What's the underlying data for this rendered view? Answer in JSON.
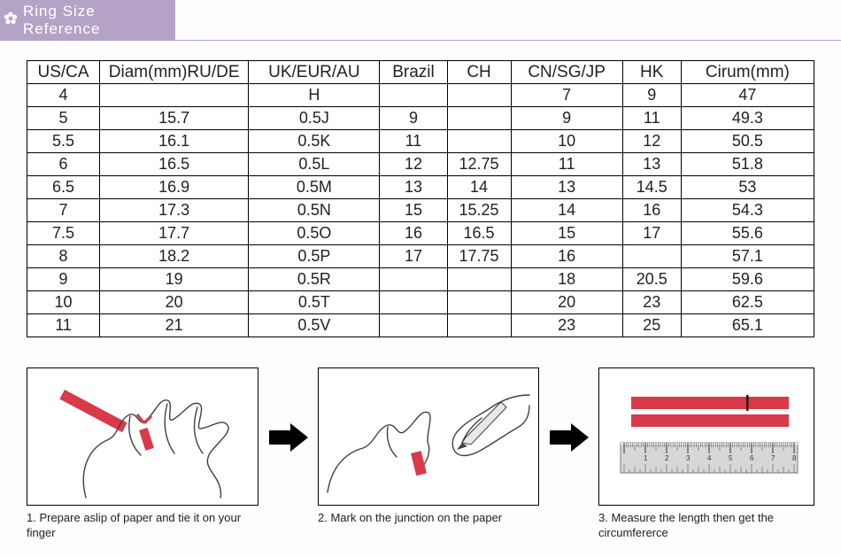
{
  "title": "Ring Size Reference",
  "table": {
    "headers": [
      "US/CA",
      "Diam(mm)RU/DE",
      "UK/EUR/AU",
      "Brazil",
      "CH",
      "CN/SG/JP",
      "HK",
      "Cirum(mm)"
    ],
    "rows": [
      [
        "4",
        "",
        "H",
        "",
        "",
        "7",
        "9",
        "47"
      ],
      [
        "5",
        "15.7",
        "0.5J",
        "9",
        "",
        "9",
        "11",
        "49.3"
      ],
      [
        "5.5",
        "16.1",
        "0.5K",
        "11",
        "",
        "10",
        "12",
        "50.5"
      ],
      [
        "6",
        "16.5",
        "0.5L",
        "12",
        "12.75",
        "11",
        "13",
        "51.8"
      ],
      [
        "6.5",
        "16.9",
        "0.5M",
        "13",
        "14",
        "13",
        "14.5",
        "53"
      ],
      [
        "7",
        "17.3",
        "0.5N",
        "15",
        "15.25",
        "14",
        "16",
        "54.3"
      ],
      [
        "7.5",
        "17.7",
        "0.5O",
        "16",
        "16.5",
        "15",
        "17",
        "55.6"
      ],
      [
        "8",
        "18.2",
        "0.5P",
        "17",
        "17.75",
        "16",
        "",
        "57.1"
      ],
      [
        "9",
        "19",
        "0.5R",
        "",
        "",
        "18",
        "20.5",
        "59.6"
      ],
      [
        "10",
        "20",
        "0.5T",
        "",
        "",
        "20",
        "23",
        "62.5"
      ],
      [
        "11",
        "21",
        "0.5V",
        "",
        "",
        "23",
        "25",
        "65.1"
      ]
    ]
  },
  "steps": {
    "s1": "1. Prepare aslip of paper and tie it on your finger",
    "s2": "2. Mark on the junction on the paper",
    "s3": "3. Measure the length then get the circumfererce"
  },
  "colors": {
    "header_bg": "#b5a3c7",
    "accent_red": "#d93a4a",
    "ruler_gray": "#c9c9c9"
  }
}
